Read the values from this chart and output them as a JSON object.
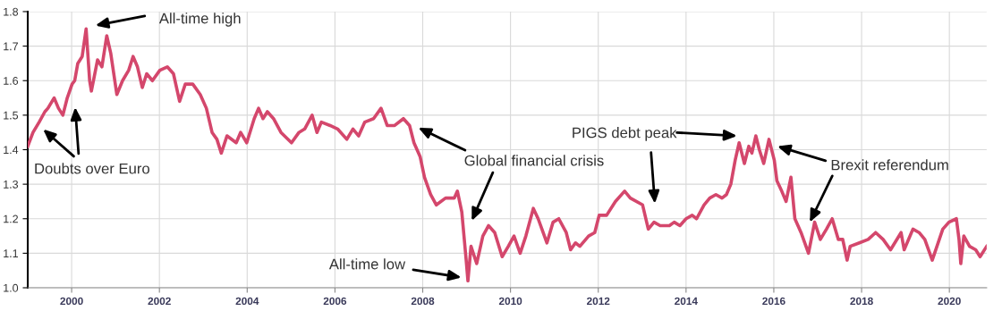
{
  "chart_data": {
    "type": "line",
    "x": [
      1999.0,
      1999.12,
      1999.26,
      1999.39,
      1999.46,
      1999.6,
      1999.7,
      1999.8,
      1999.9,
      2000.01,
      2000.07,
      2000.14,
      2000.24,
      2000.33,
      2000.41,
      2000.45,
      2000.59,
      2000.69,
      2000.8,
      2000.89,
      2001.03,
      2001.16,
      2001.3,
      2001.4,
      2001.5,
      2001.61,
      2001.71,
      2001.84,
      2002.01,
      2002.18,
      2002.32,
      2002.46,
      2002.59,
      2002.76,
      2002.93,
      2003.07,
      2003.2,
      2003.31,
      2003.41,
      2003.54,
      2003.75,
      2003.85,
      2003.99,
      2004.16,
      2004.26,
      2004.36,
      2004.46,
      2004.6,
      2004.77,
      2005.01,
      2005.18,
      2005.31,
      2005.48,
      2005.59,
      2005.69,
      2005.89,
      2006.06,
      2006.27,
      2006.41,
      2006.54,
      2006.68,
      2006.88,
      2007.05,
      2007.19,
      2007.36,
      2007.56,
      2007.7,
      2007.8,
      2007.94,
      2008.04,
      2008.18,
      2008.31,
      2008.52,
      2008.72,
      2008.79,
      2008.89,
      2008.99,
      2009.03,
      2009.1,
      2009.23,
      2009.37,
      2009.5,
      2009.64,
      2009.81,
      2009.95,
      2010.08,
      2010.22,
      2010.35,
      2010.52,
      2010.63,
      2010.83,
      2010.97,
      2011.1,
      2011.27,
      2011.37,
      2011.48,
      2011.58,
      2011.78,
      2011.92,
      2012.02,
      2012.19,
      2012.39,
      2012.6,
      2012.73,
      2013.01,
      2013.14,
      2013.27,
      2013.41,
      2013.62,
      2013.73,
      2013.86,
      2014.0,
      2014.14,
      2014.24,
      2014.41,
      2014.54,
      2014.68,
      2014.82,
      2014.92,
      2015.02,
      2015.12,
      2015.21,
      2015.33,
      2015.43,
      2015.5,
      2015.59,
      2015.67,
      2015.77,
      2015.89,
      2016.01,
      2016.07,
      2016.18,
      2016.28,
      2016.39,
      2016.48,
      2016.62,
      2016.79,
      2016.93,
      2017.06,
      2017.2,
      2017.33,
      2017.47,
      2017.57,
      2017.67,
      2017.74,
      2017.95,
      2018.15,
      2018.32,
      2018.49,
      2018.66,
      2018.9,
      2018.97,
      2019.17,
      2019.31,
      2019.44,
      2019.61,
      2019.85,
      2019.99,
      2020.16,
      2020.22,
      2020.26,
      2020.33,
      2020.46,
      2020.6,
      2020.7,
      2020.85
    ],
    "series": [
      {
        "color": "#d4476c",
        "values": [
          1.41,
          1.45,
          1.48,
          1.51,
          1.52,
          1.55,
          1.52,
          1.5,
          1.55,
          1.59,
          1.6,
          1.65,
          1.67,
          1.75,
          1.6,
          1.57,
          1.66,
          1.64,
          1.73,
          1.68,
          1.56,
          1.6,
          1.63,
          1.67,
          1.64,
          1.58,
          1.62,
          1.6,
          1.63,
          1.64,
          1.62,
          1.54,
          1.59,
          1.59,
          1.56,
          1.52,
          1.45,
          1.43,
          1.39,
          1.44,
          1.42,
          1.45,
          1.42,
          1.49,
          1.52,
          1.49,
          1.51,
          1.49,
          1.45,
          1.42,
          1.45,
          1.46,
          1.5,
          1.45,
          1.48,
          1.47,
          1.46,
          1.43,
          1.46,
          1.44,
          1.48,
          1.49,
          1.52,
          1.47,
          1.47,
          1.49,
          1.47,
          1.42,
          1.38,
          1.32,
          1.27,
          1.24,
          1.26,
          1.26,
          1.28,
          1.22,
          1.08,
          1.02,
          1.12,
          1.07,
          1.15,
          1.18,
          1.16,
          1.09,
          1.12,
          1.15,
          1.1,
          1.15,
          1.23,
          1.2,
          1.13,
          1.19,
          1.2,
          1.16,
          1.11,
          1.13,
          1.12,
          1.15,
          1.16,
          1.21,
          1.21,
          1.25,
          1.28,
          1.26,
          1.24,
          1.17,
          1.19,
          1.18,
          1.18,
          1.19,
          1.18,
          1.2,
          1.21,
          1.2,
          1.24,
          1.26,
          1.27,
          1.26,
          1.27,
          1.3,
          1.37,
          1.42,
          1.36,
          1.41,
          1.39,
          1.44,
          1.4,
          1.36,
          1.43,
          1.37,
          1.31,
          1.28,
          1.25,
          1.32,
          1.2,
          1.16,
          1.1,
          1.19,
          1.14,
          1.17,
          1.2,
          1.14,
          1.14,
          1.08,
          1.12,
          1.13,
          1.14,
          1.16,
          1.14,
          1.11,
          1.16,
          1.11,
          1.17,
          1.16,
          1.14,
          1.08,
          1.17,
          1.19,
          1.2,
          1.14,
          1.07,
          1.15,
          1.12,
          1.11,
          1.09,
          1.12
        ]
      }
    ],
    "xlim": [
      1999.0,
      2020.85
    ],
    "xticks": [
      2000,
      2002,
      2004,
      2006,
      2008,
      2010,
      2012,
      2014,
      2016,
      2018,
      2020
    ],
    "ylim": [
      1.0,
      1.8
    ],
    "yticks": [
      {
        "value": 1.0,
        "label": "1.0"
      },
      1.1,
      1.2,
      1.3,
      1.4,
      1.5,
      1.6,
      1.7,
      1.8
    ],
    "grid": true,
    "annotations": [
      "Doubts over Euro",
      "All-time high",
      "Global financial crisis",
      "All-time low",
      "PIGS debt peak",
      {
        "text": "Brexit referendum",
        "x": 2016.82,
        "y": 1.19
      }
    ]
  }
}
